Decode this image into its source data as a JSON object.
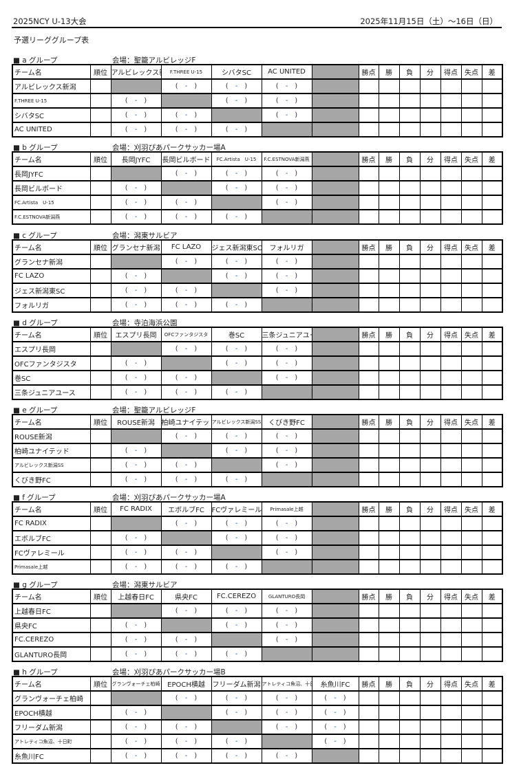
{
  "header": {
    "title": "2025NCY U-13大会",
    "date": "2025年11月15日（土）～16日（日）",
    "subtitle": "予選リーググループ表"
  },
  "columns": {
    "team": "チーム名",
    "rank": "順位",
    "stats": [
      "勝点",
      "勝",
      "負",
      "分",
      "得点",
      "失点",
      "差"
    ]
  },
  "score_placeholder": {
    "open": "(",
    "dash": "-",
    "close": ")"
  },
  "colors": {
    "self_cell": "#a6a6a6"
  },
  "groups": [
    {
      "label": "■ a グループ",
      "venue": "会場：聖籠アルビレッジF",
      "teams": [
        "アルビレックス新潟",
        "F.THREE U-15",
        "シバタSC",
        "AC UNITED"
      ],
      "header_teams": [
        "アルビレックス新潟",
        "F.THREE U-15",
        "シバタSC",
        "AC UNITED"
      ]
    },
    {
      "label": "■ b グループ",
      "venue": "会場：刈羽ぴあパークサッカー場A",
      "teams": [
        "長岡JYFC",
        "長岡ビルボード",
        "FC.Artista　U-15",
        "F.C.ESTNOVA新潟燕"
      ],
      "header_teams": [
        "長岡JYFC",
        "長岡ビルボード",
        "FC.Artista　U-15",
        "F.C.ESTNOVA新潟燕"
      ]
    },
    {
      "label": "■ c グループ",
      "venue": "会場：潟東サルビア",
      "teams": [
        "グランセナ新潟",
        "FC LAZO",
        "ジェス新潟東SC",
        "フォルリガ"
      ],
      "header_teams": [
        "グランセナ新潟",
        "FC LAZO",
        "ジェス新潟東SC",
        "フォルリガ"
      ]
    },
    {
      "label": "■ d グループ",
      "venue": "会場：寺泊海浜公園",
      "teams": [
        "エスプリ長岡",
        "OFCファンタジスタ",
        "巻SC",
        "三条ジュニアユース"
      ],
      "header_teams": [
        "エスプリ長岡",
        "OFCファンタジスタ",
        "巻SC",
        "三条ジュニアユース"
      ]
    },
    {
      "label": "■ e グループ",
      "venue": "会場：聖籠アルビレッジF",
      "teams": [
        "ROUSE新潟",
        "柏崎ユナイテッド",
        "アルビレックス新潟SS",
        "くびき野FC"
      ],
      "header_teams": [
        "ROUSE新潟",
        "柏崎ユナイテッド",
        "アルビレックス新潟SS",
        "くびき野FC"
      ]
    },
    {
      "label": "■ f グループ",
      "venue": "会場：刈羽ぴあパークサッカー場A",
      "teams": [
        "FC RADIX",
        "エボルブFC",
        "FCヴァレミール",
        "Primasale上越"
      ],
      "header_teams": [
        "FC RADIX",
        "エボルブFC",
        "FCヴァレミール",
        "Primasale上越"
      ]
    },
    {
      "label": "■ g グループ",
      "venue": "会場：潟東サルビア",
      "teams": [
        "上越春日FC",
        "県央FC",
        "FC.CEREZO",
        "GLANTURO長岡"
      ],
      "header_teams": [
        "上越春日FC",
        "県央FC",
        "FC.CEREZO",
        "GLANTURO長岡"
      ]
    },
    {
      "label": "■ h グループ",
      "venue": "会場：刈羽ぴあパークサッカー場B",
      "teams": [
        "グランヴォーチェ柏崎",
        "EPOCH横越",
        "フリーダム新潟",
        "アトレティコ魚沼、十日町",
        "糸魚川FC"
      ],
      "header_teams": [
        "グランヴォーチェ柏崎",
        "EPOCH横越",
        "フリーダム新潟",
        "アトレティコ魚沼、十日町",
        "糸魚川FC"
      ]
    }
  ]
}
